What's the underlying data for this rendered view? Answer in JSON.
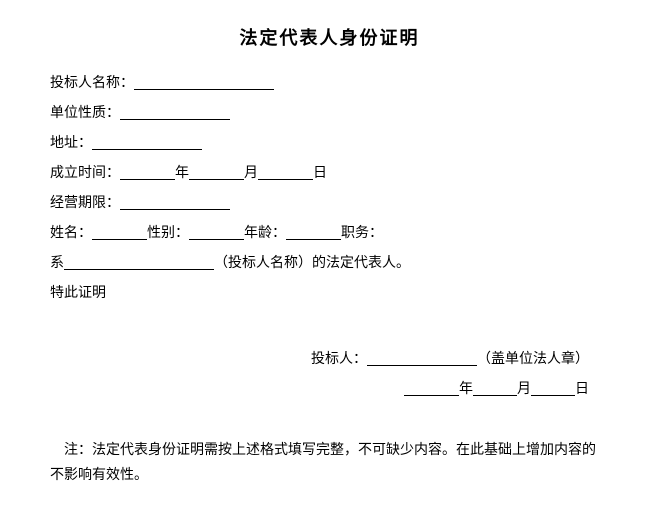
{
  "title": "法定代表人身份证明",
  "fields": {
    "bidder_name_label": "投标人名称：",
    "unit_nature_label": "单位性质：",
    "address_label": "地址：",
    "founded_label": "成立时间：",
    "year_unit": "年",
    "month_unit": "月",
    "day_unit": "日",
    "operation_period_label": "经营期限：",
    "name_label": "姓名：",
    "gender_label": "性别：",
    "age_label": "年龄：",
    "position_label": "职务：",
    "prefix_xi": "系",
    "bidder_name_paren": "（投标人名称）的法定代表人。",
    "hereby": "特此证明"
  },
  "sig": {
    "bidder_label": "投标人：",
    "seal_text": "（盖单位法人章）"
  },
  "note": "注：法定代表身份证明需按上述格式填写完整，不可缺少内容。在此基础上增加内容的不影响有效性。",
  "style": {
    "blank_long": 140,
    "blank_med": 110,
    "blank_short": 55,
    "blank_tiny": 44,
    "blank_xi": 150,
    "blank_sig": 110
  }
}
